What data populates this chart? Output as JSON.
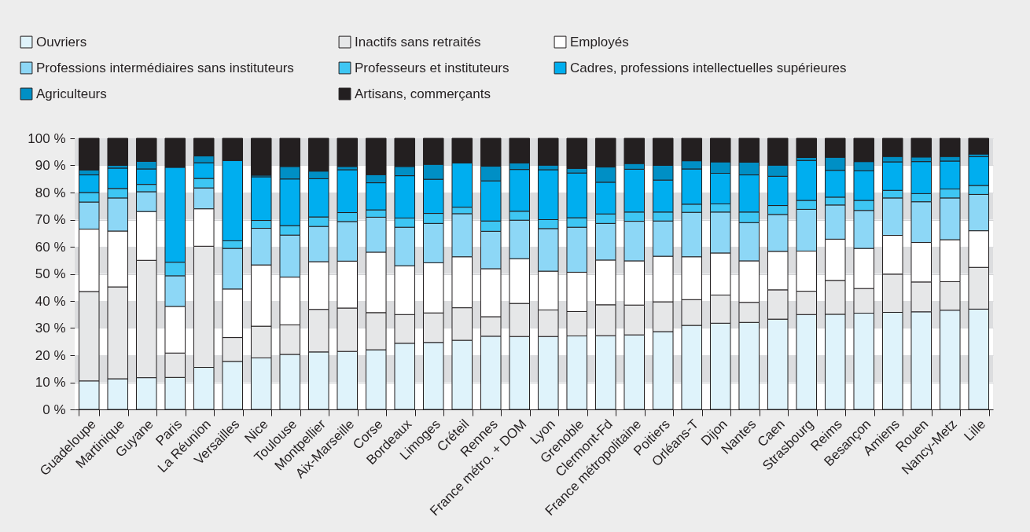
{
  "chart_data": {
    "type": "bar",
    "stacked": true,
    "legend": "top",
    "grid": "y",
    "ylim": [
      0,
      100
    ],
    "yticks": [
      {
        "value": 0,
        "label": "0 %"
      },
      {
        "value": 10,
        "label": "10 %"
      },
      {
        "value": 20,
        "label": "20 %"
      },
      {
        "value": 30,
        "label": "30 %"
      },
      {
        "value": 40,
        "label": "40 %"
      },
      {
        "value": 50,
        "label": "50 %"
      },
      {
        "value": 60,
        "label": "60 %"
      },
      {
        "value": 70,
        "label": "70 %"
      },
      {
        "value": 80,
        "label": "80 %"
      },
      {
        "value": 90,
        "label": "90 %"
      },
      {
        "value": 100,
        "label": "100 %"
      }
    ],
    "categories": [
      "Guadeloupe",
      "Martinique",
      "Guyane",
      "Paris",
      "La Réunion",
      "Versailles",
      "Nice",
      "Toulouse",
      "Montpellier",
      "Aix-Marseille",
      "Corse",
      "Bordeaux",
      "Limoges",
      "Créteil",
      "Rennes",
      "France métro. + DOM",
      "Lyon",
      "Grenoble",
      "Clermont-Fd",
      "France métropolitaine",
      "Poitiers",
      "Orléans-T",
      "Dijon",
      "Nantes",
      "Caen",
      "Strasbourg",
      "Reims",
      "Besançon",
      "Amiens",
      "Rouen",
      "Nancy-Metz",
      "Lille"
    ],
    "series": [
      {
        "name": "Ouvriers",
        "color": "#dff3fb",
        "values": [
          10.5,
          11.3,
          11.7,
          11.8,
          15.5,
          17.7,
          19,
          20.3,
          21.2,
          21.4,
          22,
          24.4,
          24.7,
          25.5,
          27,
          26.9,
          26.9,
          27.1,
          27.2,
          27.5,
          28.7,
          31,
          31.8,
          32.1,
          33.3,
          35,
          35.1,
          35.5,
          35.8,
          36,
          36.6,
          37
        ]
      },
      {
        "name": "Inactifs sans retraités",
        "color": "#e6e7e8",
        "values": [
          33,
          33.9,
          43.3,
          9,
          44.7,
          8.8,
          11.7,
          10.9,
          15.7,
          16,
          13.7,
          10.6,
          10.9,
          12,
          7.2,
          12.2,
          9.8,
          9,
          11.4,
          11,
          11,
          9.5,
          10.4,
          7.4,
          10.8,
          8.6,
          12.5,
          9.1,
          14.1,
          11,
          10.5,
          15.4
        ]
      },
      {
        "name": "Employés",
        "color": "#ffffff",
        "values": [
          23,
          20.6,
          18,
          17.2,
          13.8,
          17.9,
          22.6,
          17.6,
          17.6,
          17.3,
          22.3,
          18,
          18.5,
          18.8,
          17.7,
          16.5,
          14.3,
          14.5,
          16.5,
          16.3,
          16.8,
          15.8,
          15.5,
          15.3,
          14.2,
          14.8,
          15.2,
          14.8,
          14.3,
          14.6,
          15.5,
          13.5
        ]
      },
      {
        "name": "Professions intermédiaires sans instituteurs",
        "color": "#8dd7f6",
        "values": [
          10,
          12.2,
          7.3,
          11.3,
          7.7,
          15,
          13.5,
          15.5,
          13,
          14.6,
          12.9,
          14.2,
          14.5,
          15.9,
          13.8,
          14.2,
          15.7,
          16.6,
          13.5,
          14.6,
          13,
          16.4,
          15.1,
          14.1,
          13.6,
          15.4,
          12.6,
          14,
          13.8,
          15,
          15.4,
          13.4
        ]
      },
      {
        "name": "Professeurs et instituteurs",
        "color": "#3ec6f3",
        "values": [
          3.5,
          3.5,
          2.7,
          5,
          3.5,
          2.8,
          2.9,
          3.5,
          3.5,
          3.3,
          2.7,
          3.4,
          3.7,
          2.4,
          3.8,
          3.3,
          3.3,
          3.5,
          3.5,
          3.4,
          3.3,
          3,
          3,
          3.9,
          3.3,
          3.3,
          2.9,
          3.7,
          2.8,
          3,
          3.3,
          3.3
        ]
      },
      {
        "name": "Cadres, professions intellectuelles supérieures",
        "color": "#00aeef",
        "values": [
          6.5,
          7.5,
          5.7,
          35,
          5.8,
          29.6,
          16.1,
          17.2,
          14.1,
          15.8,
          10,
          15.6,
          12.6,
          16.3,
          14.8,
          15.4,
          18.4,
          16.5,
          11.7,
          15.8,
          11.8,
          13,
          11.3,
          13.7,
          10.8,
          14.7,
          9.9,
          10.9,
          10.5,
          11.8,
          10.3,
          10.6
        ]
      },
      {
        "name": "Agriculteurs",
        "color": "#008fc5",
        "values": [
          1.8,
          1,
          2.8,
          0.2,
          2.5,
          null,
          0.6,
          4.6,
          2.8,
          1.2,
          3,
          3.4,
          5.5,
          null,
          5.4,
          2.4,
          1.7,
          1.7,
          5.6,
          2.1,
          5.4,
          3,
          4.2,
          4.7,
          4.1,
          1.1,
          4.8,
          3.4,
          2,
          1.7,
          1.7,
          1
        ]
      },
      {
        "name": "Artisans, commerçants",
        "color": "#231f20",
        "values": [
          11.7,
          10,
          8.5,
          10.5,
          6.5,
          8.2,
          13.6,
          10.4,
          12.1,
          10.4,
          13.4,
          10.4,
          9.6,
          9.1,
          10.3,
          9.1,
          9.9,
          11.1,
          10.6,
          9.3,
          10,
          8.3,
          8.7,
          8.8,
          9.9,
          7.1,
          7,
          8.6,
          6.7,
          6.9,
          6.7,
          5.8
        ]
      }
    ]
  }
}
